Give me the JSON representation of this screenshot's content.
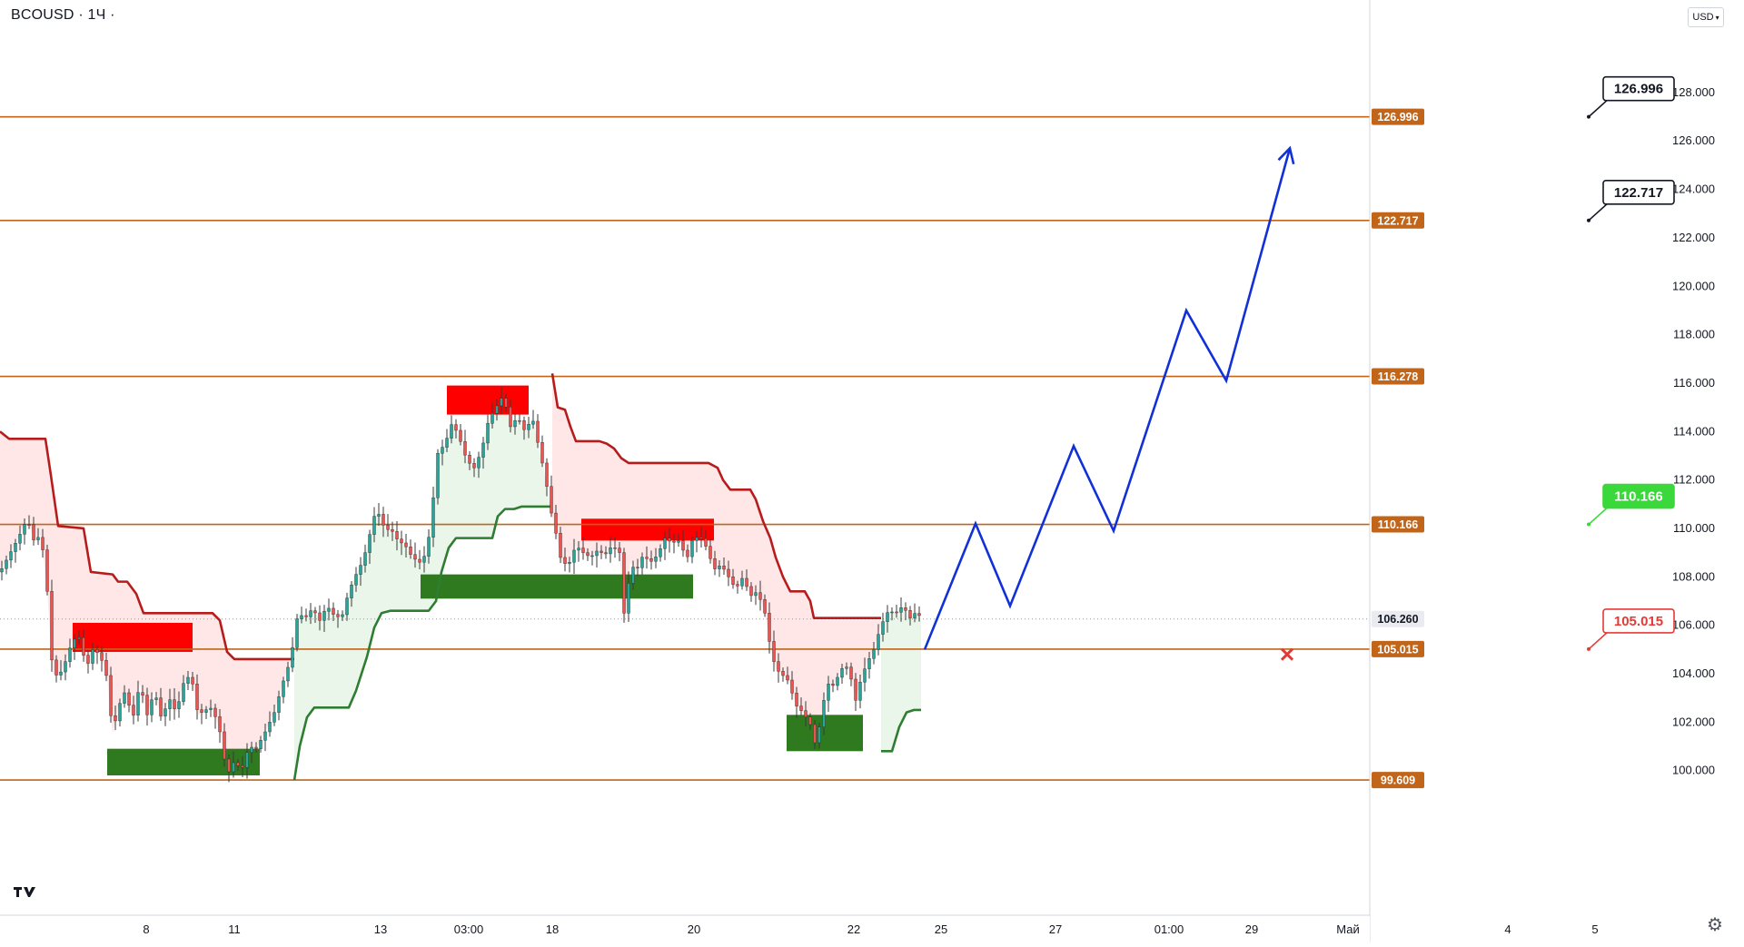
{
  "header": {
    "symbol": "BCOUSD",
    "sep": "·",
    "interval": "1Ч",
    "dot": "·"
  },
  "currency_button": "USD",
  "colors": {
    "level": "#c0651a",
    "resist": "#b71c1c",
    "support": "#2e7d32",
    "forecast": "#1230d8",
    "redzone": "#ff0000",
    "greenzone": "#2f7a1e"
  },
  "chart_data": {
    "type": "candlestick",
    "symbol": "BCOUSD",
    "timeframe": "1Ч",
    "y_axis": {
      "min": 99.0,
      "max": 129.5,
      "ticks": [
        100,
        102,
        104,
        106,
        108,
        110,
        112,
        114,
        116,
        118,
        120,
        122,
        124,
        126,
        128
      ],
      "tick_labels": [
        "100.000",
        "102.000",
        "104.000",
        "106.000",
        "108.000",
        "110.000",
        "112.000",
        "114.000",
        "116.000",
        "118.000",
        "120.000",
        "122.000",
        "124.000",
        "126.000",
        "128.000"
      ]
    },
    "x_axis": {
      "labels": [
        "8",
        "11",
        "13",
        "03:00",
        "18",
        "20",
        "22",
        "25",
        "27",
        "01:00",
        "29",
        "Май",
        "4",
        "5"
      ]
    },
    "current_price": {
      "value": 106.26,
      "label": "106.260"
    },
    "horizontal_levels": [
      {
        "value": 126.996,
        "label": "126.996",
        "callout": "126.996",
        "callout_style": "dark"
      },
      {
        "value": 122.717,
        "label": "122.717",
        "callout": "122.717",
        "callout_style": "dark"
      },
      {
        "value": 116.278,
        "label": "116.278"
      },
      {
        "value": 110.166,
        "label": "110.166",
        "callout": "110.166",
        "callout_style": "green"
      },
      {
        "value": 105.015,
        "label": "105.015",
        "callout": "105.015",
        "callout_style": "red"
      },
      {
        "value": 99.609,
        "label": "99.609"
      }
    ],
    "price_path": [
      [
        0,
        108.2
      ],
      [
        10,
        108.9
      ],
      [
        20,
        109.6
      ],
      [
        30,
        110.4
      ],
      [
        38,
        109.4
      ],
      [
        45,
        109.8
      ],
      [
        52,
        107.4
      ],
      [
        58,
        104.0
      ],
      [
        65,
        103.9
      ],
      [
        72,
        104.5
      ],
      [
        80,
        105.4
      ],
      [
        88,
        105.5
      ],
      [
        95,
        104.2
      ],
      [
        102,
        105.0
      ],
      [
        110,
        104.8
      ],
      [
        118,
        103.8
      ],
      [
        124,
        101.5
      ],
      [
        130,
        102.6
      ],
      [
        138,
        103.3
      ],
      [
        146,
        102.1
      ],
      [
        154,
        103.6
      ],
      [
        162,
        102.3
      ],
      [
        170,
        103.3
      ],
      [
        178,
        102.1
      ],
      [
        186,
        103.0
      ],
      [
        194,
        102.4
      ],
      [
        202,
        103.6
      ],
      [
        210,
        104.0
      ],
      [
        218,
        102.3
      ],
      [
        226,
        102.5
      ],
      [
        234,
        102.6
      ],
      [
        242,
        101.6
      ],
      [
        250,
        99.8
      ],
      [
        258,
        100.4
      ],
      [
        266,
        100.0
      ],
      [
        274,
        101.0
      ],
      [
        282,
        100.9
      ],
      [
        292,
        101.6
      ],
      [
        302,
        102.4
      ],
      [
        312,
        103.7
      ],
      [
        320,
        104.6
      ],
      [
        328,
        106.5
      ],
      [
        336,
        106.3
      ],
      [
        344,
        106.7
      ],
      [
        352,
        106.2
      ],
      [
        360,
        106.8
      ],
      [
        368,
        106.4
      ],
      [
        376,
        106.3
      ],
      [
        384,
        107.4
      ],
      [
        392,
        108.1
      ],
      [
        400,
        108.7
      ],
      [
        406,
        109.6
      ],
      [
        412,
        110.5
      ],
      [
        418,
        110.6
      ],
      [
        424,
        109.9
      ],
      [
        430,
        110.0
      ],
      [
        438,
        109.5
      ],
      [
        446,
        109.3
      ],
      [
        454,
        108.8
      ],
      [
        462,
        108.6
      ],
      [
        470,
        109.0
      ],
      [
        476,
        110.9
      ],
      [
        482,
        113.1
      ],
      [
        490,
        113.5
      ],
      [
        498,
        114.4
      ],
      [
        506,
        113.7
      ],
      [
        514,
        112.8
      ],
      [
        522,
        112.5
      ],
      [
        530,
        113.2
      ],
      [
        538,
        114.5
      ],
      [
        546,
        115.0
      ],
      [
        554,
        115.5
      ],
      [
        562,
        114.2
      ],
      [
        570,
        114.6
      ],
      [
        578,
        114.0
      ],
      [
        586,
        114.6
      ],
      [
        594,
        113.2
      ],
      [
        600,
        112.2
      ],
      [
        606,
        110.8
      ],
      [
        612,
        109.8
      ],
      [
        618,
        108.6
      ],
      [
        626,
        108.5
      ],
      [
        634,
        109.3
      ],
      [
        642,
        109.0
      ],
      [
        650,
        108.8
      ],
      [
        658,
        109.1
      ],
      [
        666,
        108.9
      ],
      [
        674,
        109.3
      ],
      [
        682,
        109.0
      ],
      [
        688,
        106.0
      ],
      [
        694,
        108.6
      ],
      [
        700,
        108.2
      ],
      [
        708,
        108.9
      ],
      [
        716,
        108.6
      ],
      [
        724,
        108.9
      ],
      [
        732,
        109.6
      ],
      [
        740,
        109.4
      ],
      [
        748,
        109.5
      ],
      [
        756,
        108.7
      ],
      [
        762,
        109.5
      ],
      [
        770,
        109.7
      ],
      [
        778,
        109.2
      ],
      [
        786,
        108.3
      ],
      [
        794,
        108.5
      ],
      [
        802,
        108.0
      ],
      [
        810,
        107.5
      ],
      [
        818,
        108.0
      ],
      [
        826,
        107.2
      ],
      [
        834,
        107.4
      ],
      [
        842,
        106.5
      ],
      [
        848,
        105.1
      ],
      [
        854,
        104.2
      ],
      [
        860,
        104.0
      ],
      [
        868,
        103.7
      ],
      [
        876,
        102.7
      ],
      [
        884,
        102.4
      ],
      [
        892,
        101.9
      ],
      [
        898,
        101.0
      ],
      [
        904,
        102.2
      ],
      [
        910,
        103.6
      ],
      [
        918,
        103.5
      ],
      [
        926,
        104.2
      ],
      [
        934,
        104.3
      ],
      [
        942,
        102.9
      ],
      [
        948,
        103.8
      ],
      [
        954,
        104.4
      ],
      [
        962,
        105.0
      ],
      [
        970,
        106.0
      ],
      [
        978,
        106.6
      ],
      [
        986,
        106.5
      ],
      [
        994,
        106.8
      ],
      [
        1002,
        106.3
      ],
      [
        1010,
        106.6
      ],
      [
        1016,
        106.0
      ]
    ],
    "resistance_line": [
      [
        0,
        114.0
      ],
      [
        10,
        113.7
      ],
      [
        50,
        113.7
      ],
      [
        56,
        112.2
      ],
      [
        64,
        110.1
      ],
      [
        92,
        110.0
      ],
      [
        100,
        108.2
      ],
      [
        124,
        108.1
      ],
      [
        130,
        107.8
      ],
      [
        140,
        107.8
      ],
      [
        150,
        107.3
      ],
      [
        158,
        106.5
      ],
      [
        234,
        106.5
      ],
      [
        242,
        106.2
      ],
      [
        250,
        104.9
      ],
      [
        258,
        104.6
      ],
      [
        324,
        104.6
      ]
    ],
    "support_line": [
      [
        324,
        99.6
      ],
      [
        330,
        101.0
      ],
      [
        338,
        102.2
      ],
      [
        346,
        102.6
      ],
      [
        384,
        102.6
      ],
      [
        392,
        103.3
      ],
      [
        404,
        104.7
      ],
      [
        412,
        105.9
      ],
      [
        420,
        106.5
      ],
      [
        430,
        106.6
      ],
      [
        472,
        106.6
      ],
      [
        480,
        107.0
      ],
      [
        486,
        108.2
      ],
      [
        494,
        109.2
      ],
      [
        502,
        109.6
      ],
      [
        542,
        109.6
      ],
      [
        548,
        110.5
      ],
      [
        556,
        110.8
      ],
      [
        566,
        110.8
      ],
      [
        574,
        110.9
      ],
      [
        606,
        110.9
      ]
    ],
    "resistance_line_2": [
      [
        608,
        116.4
      ],
      [
        614,
        115.0
      ],
      [
        622,
        114.9
      ],
      [
        628,
        114.2
      ],
      [
        634,
        113.6
      ],
      [
        660,
        113.6
      ],
      [
        668,
        113.5
      ],
      [
        676,
        113.3
      ],
      [
        684,
        112.9
      ],
      [
        692,
        112.7
      ],
      [
        780,
        112.7
      ],
      [
        790,
        112.5
      ],
      [
        796,
        112.0
      ],
      [
        804,
        111.6
      ],
      [
        826,
        111.6
      ],
      [
        832,
        111.2
      ],
      [
        840,
        110.3
      ],
      [
        848,
        109.6
      ],
      [
        854,
        108.8
      ],
      [
        862,
        108.0
      ],
      [
        870,
        107.4
      ],
      [
        886,
        107.4
      ],
      [
        892,
        107.0
      ],
      [
        896,
        106.3
      ],
      [
        970,
        106.3
      ]
    ],
    "support_line_2": [
      [
        970,
        100.8
      ],
      [
        982,
        100.8
      ],
      [
        990,
        101.8
      ],
      [
        998,
        102.4
      ],
      [
        1006,
        102.5
      ],
      [
        1014,
        102.5
      ]
    ],
    "resistance_zones": [
      {
        "x0": 80,
        "x1": 212,
        "y0": 104.9,
        "y1": 106.1
      },
      {
        "x0": 492,
        "x1": 582,
        "y0": 114.7,
        "y1": 115.9
      },
      {
        "x0": 640,
        "x1": 786,
        "y0": 109.5,
        "y1": 110.4
      }
    ],
    "support_zones": [
      {
        "x0": 118,
        "x1": 286,
        "y0": 99.8,
        "y1": 100.9
      },
      {
        "x0": 463,
        "x1": 763,
        "y0": 107.1,
        "y1": 108.1
      },
      {
        "x0": 866,
        "x1": 950,
        "y0": 100.8,
        "y1": 102.3
      }
    ],
    "forecast_path": [
      [
        1018,
        105.0
      ],
      [
        1074,
        110.2
      ],
      [
        1112,
        106.8
      ],
      [
        1182,
        113.4
      ],
      [
        1226,
        109.9
      ],
      [
        1306,
        119.0
      ],
      [
        1350,
        116.1
      ],
      [
        1420,
        125.7
      ]
    ],
    "stop_marker": {
      "x": 1417,
      "y": 104.8
    }
  }
}
